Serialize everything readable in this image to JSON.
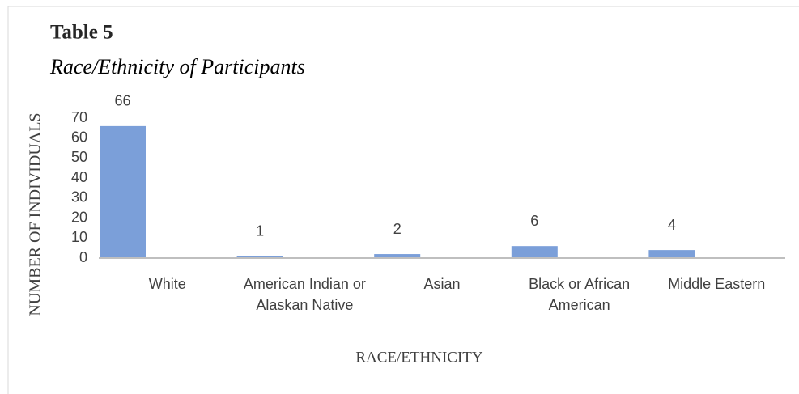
{
  "chart_data": {
    "type": "bar",
    "title": "Table 5",
    "subtitle": "Race/Ethnicity of Participants",
    "categories": [
      "White",
      "American Indian or Alaskan Native",
      "Asian",
      "Black or African American",
      "Middle Eastern"
    ],
    "values": [
      66,
      1,
      2,
      6,
      4
    ],
    "color": "#7b9fd9",
    "ylim": [
      0,
      70
    ],
    "yticks": [
      0,
      10,
      20,
      30,
      40,
      50,
      60,
      70
    ],
    "xlabel": "RACE/ETHNICITY",
    "ylabel": "NUMBER OF INDIVIDUALS",
    "grid": false
  }
}
